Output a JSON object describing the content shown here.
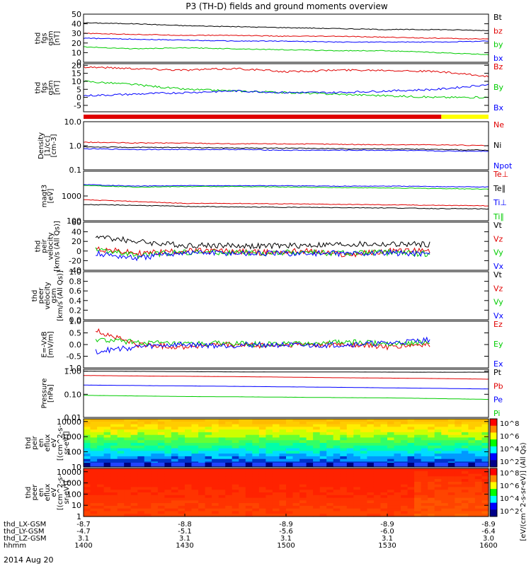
{
  "title": "P3 (TH-D) fields and ground moments overview",
  "date": "2014 Aug 20",
  "colors": {
    "black": "#000000",
    "red": "#e00000",
    "green": "#00cc00",
    "blue": "#0000ff",
    "yellow": "#ffff00"
  },
  "x_axis": {
    "range": [
      "1400",
      "1600"
    ],
    "rows": [
      {
        "label": "thd_LX-GSM",
        "values": [
          "-8.7",
          "-8.8",
          "-8.9",
          "-8.9",
          "-8.9"
        ]
      },
      {
        "label": "thd_LY-GSM",
        "values": [
          "-4.7",
          "-5.1",
          "-5.6",
          "-6.0",
          "-6.4"
        ]
      },
      {
        "label": "thd_LZ-GSM",
        "values": [
          "3.1",
          "3.1",
          "3.1",
          "3.1",
          "3.0"
        ]
      },
      {
        "label": "hhmm",
        "values": [
          "1400",
          "1430",
          "1500",
          "1530",
          "1600"
        ]
      }
    ]
  },
  "status_bar": {
    "segments": [
      {
        "color": "#e00000",
        "start": "1400",
        "end": "1546"
      },
      {
        "color": "#ffff00",
        "start": "1546",
        "end": "1600"
      }
    ]
  },
  "colorbar": {
    "label": "[eV/(cm^2-s-sr-eV)] (All Qs)",
    "ticks_top": [
      "10^8",
      "10^6",
      "10^4",
      "10^2"
    ],
    "ticks_bottom": [
      "10^8",
      "10^6",
      "10^4",
      "10^2"
    ]
  },
  "chart_data": [
    {
      "type": "line",
      "ylabel": [
        "thd",
        "fgs",
        "gsm",
        "[nT]"
      ],
      "ylim": [
        0,
        50
      ],
      "yticks": [
        "0",
        "10",
        "20",
        "30",
        "40",
        "50"
      ],
      "series": [
        {
          "name": "Bt",
          "color": "#000000",
          "values": [
            41,
            40,
            38,
            37,
            36,
            35,
            34,
            34,
            33
          ]
        },
        {
          "name": "bz",
          "color": "#e00000",
          "values": [
            30,
            29,
            28,
            28,
            27,
            27,
            26,
            25,
            24
          ]
        },
        {
          "name": "by",
          "color": "#00cc00",
          "values": [
            16,
            14,
            15,
            14,
            13,
            12,
            12,
            10,
            8
          ]
        },
        {
          "name": "bx",
          "color": "#0000ff",
          "values": [
            25,
            24,
            23,
            22,
            22,
            21,
            21,
            21,
            22
          ]
        }
      ]
    },
    {
      "type": "line",
      "ylabel": [
        "thd",
        "fgs",
        "gsm",
        "[nT]"
      ],
      "ylim": [
        -9,
        21
      ],
      "yticks": [
        "-5",
        "0",
        "5",
        "10",
        "15",
        "20"
      ],
      "series": [
        {
          "name": "Bz",
          "color": "#e00000",
          "values": [
            19,
            18,
            17,
            18,
            16,
            17,
            17,
            16,
            13
          ]
        },
        {
          "name": "By",
          "color": "#00cc00",
          "values": [
            10,
            8,
            5,
            4,
            3,
            2,
            1,
            0,
            0
          ]
        },
        {
          "name": "Bx",
          "color": "#0000ff",
          "values": [
            1,
            2,
            3,
            4,
            3,
            3,
            4,
            5,
            8
          ]
        }
      ]
    },
    {
      "type": "line",
      "ylabel": [
        "Density",
        "[1/cc]",
        "[cm-3]"
      ],
      "yscale": "log",
      "ylim": [
        0.1,
        10
      ],
      "yticks": [
        "0.1",
        "1.0",
        "10.0"
      ],
      "series": [
        {
          "name": "Ne",
          "color": "#e00000",
          "values": [
            1.4,
            1.3,
            1.3,
            1.2,
            1.2,
            1.15,
            1.1,
            1.1,
            1.0
          ]
        },
        {
          "name": "Ni",
          "color": "#000000",
          "values": [
            0.9,
            0.85,
            0.85,
            0.8,
            0.8,
            0.75,
            0.75,
            0.7,
            0.65
          ]
        },
        {
          "name": "Npot",
          "color": "#0000ff",
          "values": [
            0.75,
            0.7,
            0.7,
            0.7,
            0.65,
            0.65,
            0.65,
            0.6,
            0.6
          ]
        }
      ]
    },
    {
      "type": "line",
      "ylabel": [
        "magt3",
        "[eV]"
      ],
      "yscale": "log",
      "ylim": [
        100,
        10000
      ],
      "yticks": [
        "100",
        "1000"
      ],
      "series": [
        {
          "name": "Te⊥",
          "color": "#e00000",
          "values": [
            700,
            600,
            500,
            500,
            480,
            460,
            440,
            420,
            400
          ]
        },
        {
          "name": "Te∥",
          "color": "#000000",
          "values": [
            450,
            420,
            380,
            360,
            350,
            340,
            330,
            310,
            300
          ]
        },
        {
          "name": "Ti⊥",
          "color": "#0000ff",
          "values": [
            2900,
            2500,
            2600,
            2600,
            2600,
            2500,
            2500,
            2400,
            2300
          ]
        },
        {
          "name": "Ti∥",
          "color": "#00cc00",
          "values": [
            2700,
            2300,
            2400,
            2400,
            2300,
            2200,
            2100,
            2000,
            1900
          ]
        }
      ]
    },
    {
      "type": "line",
      "ylabel": [
        "thd",
        "peir",
        "velocity",
        "[km/s (All Qs)]"
      ],
      "ylim": [
        -40,
        60
      ],
      "yticks": [
        "-40",
        "-20",
        "0",
        "20",
        "40",
        "60"
      ],
      "series": [
        {
          "name": "Vt",
          "color": "#000000",
          "values": [
            30,
            20,
            12,
            12,
            10,
            12,
            14,
            14,
            14
          ]
        },
        {
          "name": "Vz",
          "color": "#e00000",
          "values": [
            5,
            -5,
            0,
            0,
            -3,
            0,
            -8,
            0,
            0
          ]
        },
        {
          "name": "Vy",
          "color": "#00cc00",
          "values": [
            3,
            -10,
            -2,
            -3,
            -5,
            -2,
            -5,
            -3,
            -6
          ]
        },
        {
          "name": "Vx",
          "color": "#0000ff",
          "values": [
            -5,
            -15,
            -3,
            -4,
            -5,
            -5,
            -5,
            -4,
            -5
          ]
        }
      ]
    },
    {
      "type": "line",
      "ylabel": [
        "thd",
        "peer",
        "velocity",
        "gsm",
        "[km/s (All Qs)]"
      ],
      "ylim": [
        0,
        1
      ],
      "yticks": [
        "0.0",
        "0.2",
        "0.4",
        "0.6",
        "0.8",
        "1.0"
      ],
      "series": [
        {
          "name": "Vt",
          "color": "#000000",
          "values": []
        },
        {
          "name": "Vz",
          "color": "#e00000",
          "values": []
        },
        {
          "name": "Vy",
          "color": "#00cc00",
          "values": []
        },
        {
          "name": "Vx",
          "color": "#0000ff",
          "values": []
        }
      ]
    },
    {
      "type": "line",
      "ylabel": [
        "E=-VxB",
        "[mV/m]"
      ],
      "ylim": [
        -1,
        1
      ],
      "yticks": [
        "-1.0",
        "-0.5",
        "0.0",
        "0.5",
        "1.0"
      ],
      "series": [
        {
          "name": "Ez",
          "color": "#e00000",
          "values": [
            0.6,
            0.0,
            -0.1,
            0.0,
            -0.05,
            0.0,
            0.0,
            -0.1,
            0.0
          ]
        },
        {
          "name": "Ey",
          "color": "#00cc00",
          "values": [
            0.2,
            0.1,
            0.0,
            0.05,
            0.0,
            0.05,
            0.1,
            0.05,
            0.1
          ]
        },
        {
          "name": "Ex",
          "color": "#0000ff",
          "values": [
            -0.3,
            -0.1,
            0.0,
            -0.05,
            0.0,
            -0.05,
            0.0,
            0.05,
            0.2
          ]
        }
      ]
    },
    {
      "type": "line",
      "ylabel": [
        "Pressure",
        "[nPa]"
      ],
      "yscale": "log",
      "ylim": [
        0.01,
        1.2
      ],
      "yticks": [
        "0.01",
        "0.10",
        "1.00"
      ],
      "series": [
        {
          "name": "Pt",
          "color": "#000000",
          "values": [
            1.0,
            0.98,
            0.95,
            0.93,
            0.92,
            0.92,
            0.91,
            0.9,
            0.9
          ]
        },
        {
          "name": "Pb",
          "color": "#e00000",
          "values": [
            0.65,
            0.62,
            0.6,
            0.58,
            0.55,
            0.52,
            0.5,
            0.48,
            0.45
          ]
        },
        {
          "name": "Pe",
          "color": "#0000ff",
          "values": [
            0.25,
            0.24,
            0.23,
            0.22,
            0.21,
            0.2,
            0.19,
            0.18,
            0.17
          ]
        },
        {
          "name": "Pi",
          "color": "#00cc00",
          "values": [
            0.09,
            0.085,
            0.08,
            0.078,
            0.075,
            0.072,
            0.07,
            0.065,
            0.06
          ]
        }
      ]
    },
    {
      "type": "heatmap",
      "ylabel": [
        "thd",
        "peir",
        "en",
        "eflux",
        "eV",
        "[(cm^2-s-",
        "sr-eV)]"
      ],
      "yscale": "log",
      "yticks": [
        "10",
        "100",
        "1000",
        "10000"
      ]
    },
    {
      "type": "heatmap",
      "ylabel": [
        "thd",
        "peer",
        "en",
        "eflux",
        "eV",
        "[(cm^2-s-",
        "sr-eV)]"
      ],
      "yscale": "log",
      "yticks": [
        "1",
        "10",
        "100",
        "1000",
        "10000"
      ]
    }
  ]
}
